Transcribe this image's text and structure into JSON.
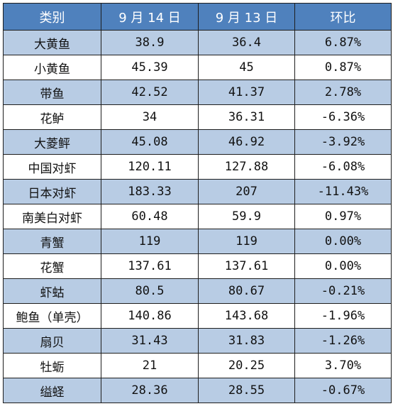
{
  "table": {
    "headers": [
      "类别",
      "9 月 14 日",
      "9 月 13 日",
      "环比"
    ],
    "rows": [
      [
        "大黄鱼",
        "38.9",
        "36.4",
        "6.87%"
      ],
      [
        "小黄鱼",
        "45.39",
        "45",
        "0.87%"
      ],
      [
        "带鱼",
        "42.52",
        "41.37",
        "2.78%"
      ],
      [
        "花鲈",
        "34",
        "36.31",
        "-6.36%"
      ],
      [
        "大菱鲆",
        "45.08",
        "46.92",
        "-3.92%"
      ],
      [
        "中国对虾",
        "120.11",
        "127.88",
        "-6.08%"
      ],
      [
        "日本对虾",
        "183.33",
        "207",
        "-11.43%"
      ],
      [
        "南美白对虾",
        "60.48",
        "59.9",
        "0.97%"
      ],
      [
        "青蟹",
        "119",
        "119",
        "0.00%"
      ],
      [
        "花蟹",
        "137.61",
        "137.61",
        "0.00%"
      ],
      [
        "虾蛄",
        "80.5",
        "80.67",
        "-0.21%"
      ],
      [
        "鲍鱼（单壳）",
        "140.86",
        "143.68",
        "-1.96%"
      ],
      [
        "扇贝",
        "31.43",
        "31.83",
        "-1.26%"
      ],
      [
        "牡蛎",
        "21",
        "20.25",
        "3.70%"
      ],
      [
        "缢蛏",
        "28.36",
        "28.55",
        "-0.67%"
      ]
    ]
  }
}
